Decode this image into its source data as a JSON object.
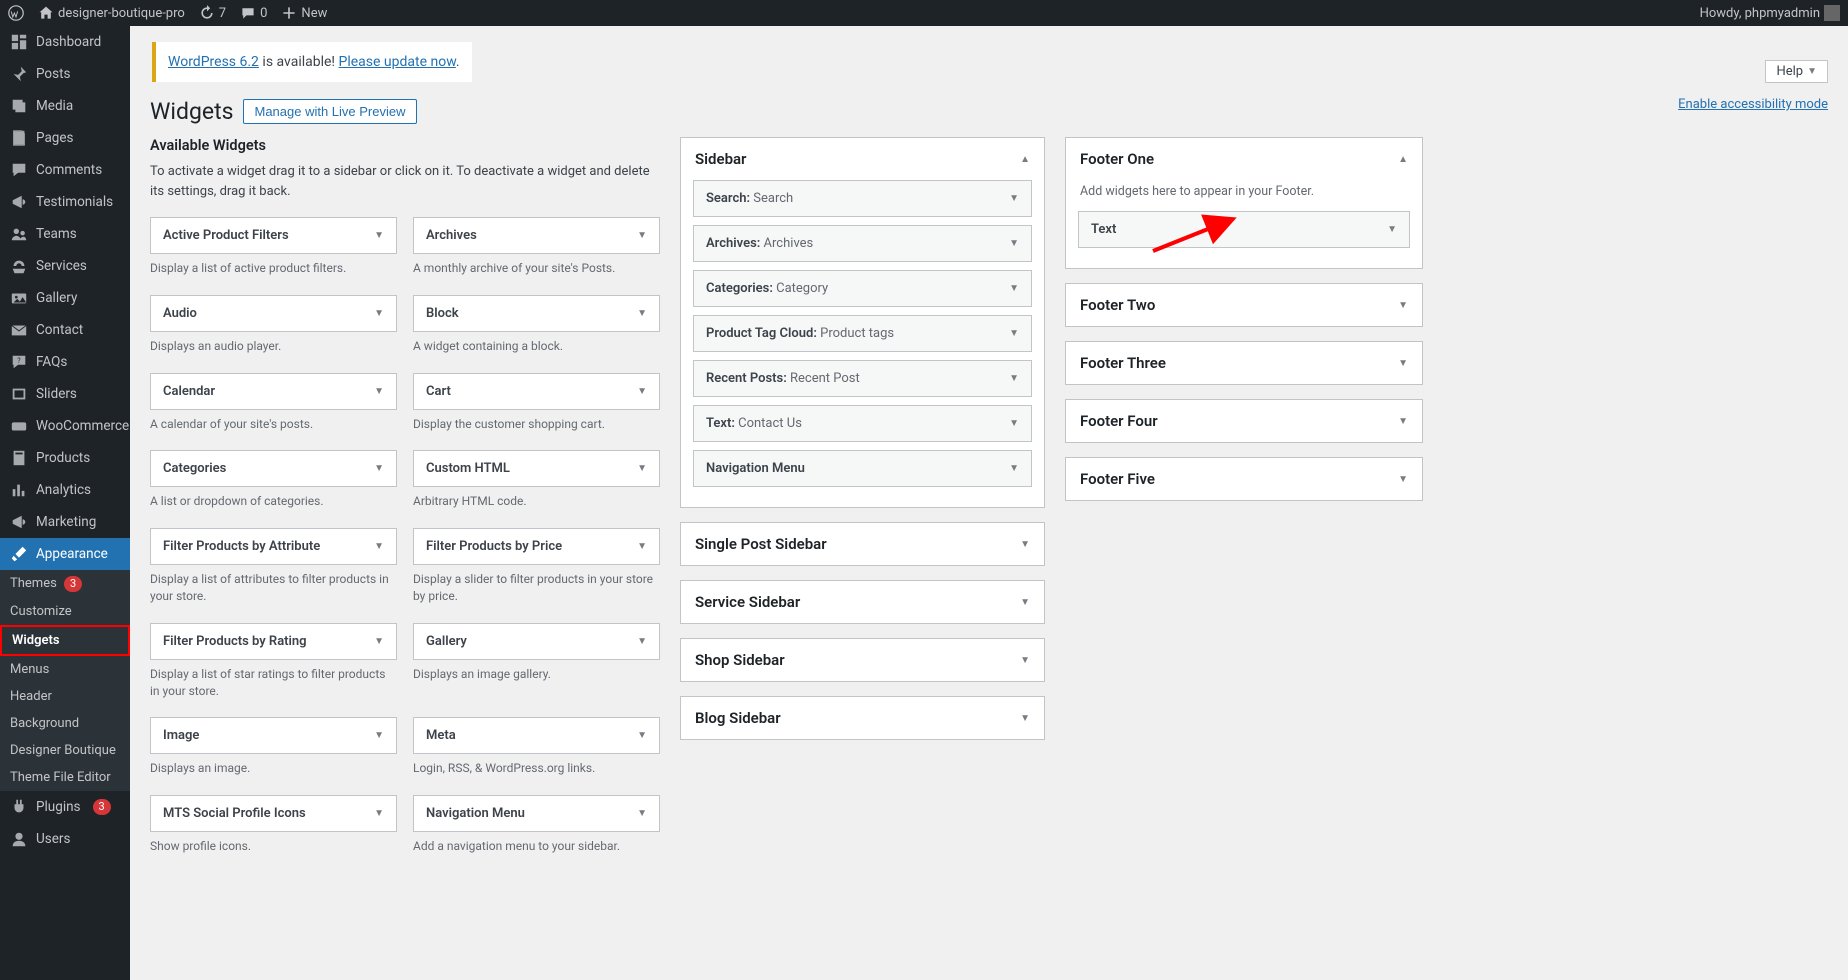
{
  "adminbar": {
    "site_name": "designer-boutique-pro",
    "updates_count": "7",
    "comments_count": "0",
    "new_label": "New",
    "howdy": "Howdy, phpmyadmin"
  },
  "sidebar": {
    "items": [
      {
        "label": "Dashboard",
        "icon": "dashboard"
      },
      {
        "label": "Posts",
        "icon": "pin"
      },
      {
        "label": "Media",
        "icon": "media"
      },
      {
        "label": "Pages",
        "icon": "pages"
      },
      {
        "label": "Comments",
        "icon": "comment"
      },
      {
        "label": "Testimonials",
        "icon": "megaphone"
      },
      {
        "label": "Teams",
        "icon": "teams"
      },
      {
        "label": "Services",
        "icon": "services"
      },
      {
        "label": "Gallery",
        "icon": "gallery"
      },
      {
        "label": "Contact",
        "icon": "mail"
      },
      {
        "label": "FAQs",
        "icon": "faq"
      },
      {
        "label": "Sliders",
        "icon": "sliders"
      },
      {
        "label": "WooCommerce",
        "icon": "woo"
      },
      {
        "label": "Products",
        "icon": "products"
      },
      {
        "label": "Analytics",
        "icon": "analytics"
      },
      {
        "label": "Marketing",
        "icon": "marketing"
      },
      {
        "label": "Appearance",
        "icon": "brush",
        "open": true
      },
      {
        "label": "Plugins",
        "icon": "plugin",
        "badge": "3"
      },
      {
        "label": "Users",
        "icon": "users"
      }
    ],
    "appearance_sub": [
      {
        "label": "Themes",
        "badge": "3"
      },
      {
        "label": "Customize"
      },
      {
        "label": "Widgets",
        "current": true
      },
      {
        "label": "Menus"
      },
      {
        "label": "Header"
      },
      {
        "label": "Background"
      },
      {
        "label": "Designer Boutique"
      },
      {
        "label": "Theme File Editor"
      }
    ]
  },
  "update_nag": {
    "prefix": "WordPress 6.2",
    "mid": " is available! ",
    "link": "Please update now"
  },
  "page": {
    "title": "Widgets",
    "live_preview_btn": "Manage with Live Preview",
    "help_btn": "Help",
    "accessibility_link": "Enable accessibility mode",
    "available_title": "Available Widgets",
    "available_desc": "To activate a widget drag it to a sidebar or click on it. To deactivate a widget and delete its settings, drag it back."
  },
  "available_widgets": [
    {
      "title": "Active Product Filters",
      "desc": "Display a list of active product filters."
    },
    {
      "title": "Archives",
      "desc": "A monthly archive of your site's Posts."
    },
    {
      "title": "Audio",
      "desc": "Displays an audio player."
    },
    {
      "title": "Block",
      "desc": "A widget containing a block."
    },
    {
      "title": "Calendar",
      "desc": "A calendar of your site's posts."
    },
    {
      "title": "Cart",
      "desc": "Display the customer shopping cart."
    },
    {
      "title": "Categories",
      "desc": "A list or dropdown of categories."
    },
    {
      "title": "Custom HTML",
      "desc": "Arbitrary HTML code."
    },
    {
      "title": "Filter Products by Attribute",
      "desc": "Display a list of attributes to filter products in your store."
    },
    {
      "title": "Filter Products by Price",
      "desc": "Display a slider to filter products in your store by price."
    },
    {
      "title": "Filter Products by Rating",
      "desc": "Display a list of star ratings to filter products in your store."
    },
    {
      "title": "Gallery",
      "desc": "Displays an image gallery."
    },
    {
      "title": "Image",
      "desc": "Displays an image."
    },
    {
      "title": "Meta",
      "desc": "Login, RSS, & WordPress.org links."
    },
    {
      "title": "MTS Social Profile Icons",
      "desc": "Show profile icons."
    },
    {
      "title": "Navigation Menu",
      "desc": "Add a navigation menu to your sidebar."
    }
  ],
  "sidebar_areas_mid": [
    {
      "title": "Sidebar",
      "expanded": true,
      "widgets": [
        {
          "name": "Search",
          "instance": "Search"
        },
        {
          "name": "Archives",
          "instance": "Archives"
        },
        {
          "name": "Categories",
          "instance": "Category"
        },
        {
          "name": "Product Tag Cloud",
          "instance": "Product tags"
        },
        {
          "name": "Recent Posts",
          "instance": "Recent Post"
        },
        {
          "name": "Text",
          "instance": "Contact Us"
        },
        {
          "name": "Navigation Menu",
          "instance": ""
        }
      ]
    },
    {
      "title": "Single Post Sidebar"
    },
    {
      "title": "Service Sidebar"
    },
    {
      "title": "Shop Sidebar"
    },
    {
      "title": "Blog Sidebar"
    }
  ],
  "sidebar_areas_right": [
    {
      "title": "Footer One",
      "expanded": true,
      "note": "Add widgets here to appear in your Footer.",
      "widgets": [
        {
          "name": "Text",
          "instance": ""
        }
      ]
    },
    {
      "title": "Footer Two"
    },
    {
      "title": "Footer Three"
    },
    {
      "title": "Footer Four"
    },
    {
      "title": "Footer Five"
    }
  ],
  "annotation": {
    "arrow_color": "#ff0000"
  }
}
